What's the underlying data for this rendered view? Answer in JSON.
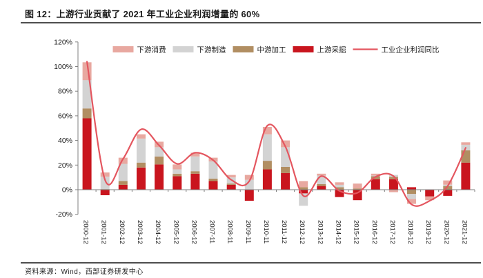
{
  "page": {
    "title": "图 12：上游行业贡献了 2021 年工业企业利润增量的 60%",
    "source_note": "资料来源：Wind，西部证券研发中心"
  },
  "chart_data": {
    "type": "bar",
    "stacked": true,
    "title": "",
    "xlabel": "",
    "ylabel": "",
    "ylim": [
      -20,
      120
    ],
    "ytick_step": 20,
    "ytick_labels": [
      "-20%",
      "0%",
      "20%",
      "40%",
      "60%",
      "80%",
      "100%",
      "120%"
    ],
    "grid": false,
    "legend_position": "top",
    "categories": [
      "2000-12",
      "2001-12",
      "2002-12",
      "2003-12",
      "2004-12",
      "2005-12",
      "2006-12",
      "2007-11",
      "2008-11",
      "2009-11",
      "2010-11",
      "2011-12",
      "2012-12",
      "2013-12",
      "2014-12",
      "2015-12",
      "2016-12",
      "2017-12",
      "2018-12",
      "2019-12",
      "2020-12",
      "2021-12"
    ],
    "series": [
      {
        "name": "下游消费",
        "color": "#E8A8A0",
        "values": [
          14.5,
          3.5,
          5,
          3.5,
          4.5,
          4,
          3,
          3,
          2,
          4,
          6,
          5.5,
          5,
          1.5,
          2,
          4,
          1.5,
          -2,
          -4,
          -3,
          3.5,
          2
        ]
      },
      {
        "name": "下游制造",
        "color": "#D3D3D3",
        "values": [
          23,
          10,
          14,
          19.5,
          7.5,
          3.5,
          12,
          14,
          5,
          8,
          21.5,
          16,
          -10,
          7,
          2,
          0,
          0.5,
          1.5,
          -4,
          0,
          1,
          4.5
        ]
      },
      {
        "name": "中游加工",
        "color": "#B18E62",
        "values": [
          8,
          0.5,
          3,
          4,
          6.5,
          2,
          2,
          2,
          1,
          0,
          7,
          5,
          2,
          1.5,
          2,
          1,
          2.5,
          2,
          -3.5,
          0,
          3,
          10
        ]
      },
      {
        "name": "上游采掘",
        "color": "#C9151E",
        "values": [
          58,
          -4.5,
          4,
          18,
          20.5,
          11,
          13,
          7,
          4,
          -9,
          16.5,
          13.5,
          -3,
          3,
          -6,
          -8.5,
          8.5,
          8.5,
          2,
          -5.5,
          -5,
          22
        ]
      }
    ],
    "stack_order_bottom_to_top": [
      "上游采掘",
      "中游加工",
      "下游制造",
      "下游消费"
    ],
    "line_series": {
      "name": "工业企业利润同比",
      "color": "#E4565F",
      "values": [
        104,
        8,
        25,
        49,
        36,
        21,
        30,
        24,
        8,
        7,
        52,
        35,
        -5,
        11,
        -1,
        -2.5,
        10.5,
        11,
        -12,
        -9,
        3,
        34
      ]
    },
    "axis_color": "#7f7f7f",
    "text_color": "#1a1a1a"
  }
}
